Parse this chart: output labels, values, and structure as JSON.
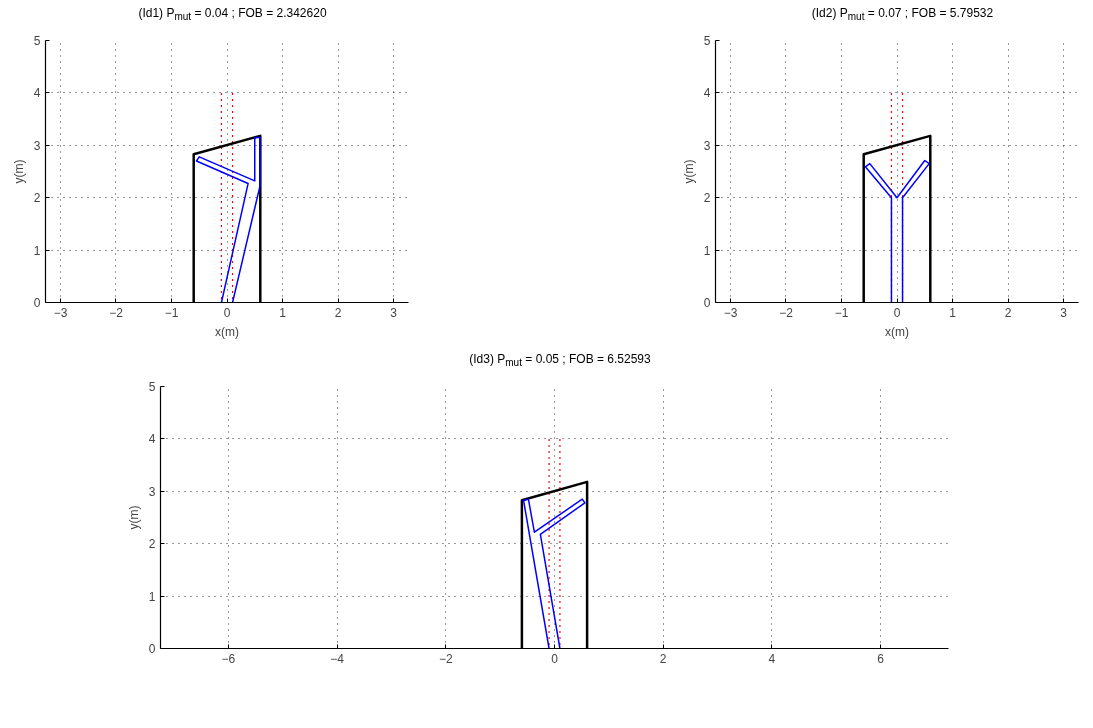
{
  "chart_data": [
    {
      "type": "line",
      "title": "(Id1) P$_{mut}$ = 0.04 ; FOB = 2.342620",
      "xlabel": "x(m)",
      "ylabel": "y(m)",
      "xlim": [
        -3.27,
        3.27
      ],
      "ylim": [
        0,
        5
      ],
      "xticks": [
        -3,
        -2,
        -1,
        0,
        1,
        2,
        3
      ],
      "yticks": [
        0,
        1,
        2,
        3,
        4,
        5
      ],
      "grid": true,
      "series": [
        {
          "color": "#ff0000",
          "line_style": "dotted",
          "x": [
            -0.1,
            -0.1
          ],
          "values": [
            0,
            4
          ]
        },
        {
          "color": "#ff0000",
          "line_style": "dotted",
          "x": [
            0.1,
            0.1
          ],
          "values": [
            0,
            4
          ]
        },
        {
          "color": "#000000",
          "line_style": "solid",
          "x": [
            -0.6,
            -0.6,
            0.6,
            0.6
          ],
          "values": [
            0,
            2.83,
            3.18,
            0
          ]
        },
        {
          "color": "#0000ff",
          "line_style": "solid",
          "x": [
            -0.1,
            0.38,
            -0.55,
            -0.5,
            0.5,
            0.5,
            0.6,
            0.6,
            0.1
          ],
          "values": [
            0,
            2.27,
            2.7,
            2.78,
            2.32,
            3.15,
            3.15,
            2.25,
            0
          ]
        }
      ]
    },
    {
      "type": "line",
      "title": "(Id2) P$_{mut}$ = 0.07 ; FOB = 5.79532",
      "xlabel": "x(m)",
      "ylabel": "y(m)",
      "xlim": [
        -3.27,
        3.27
      ],
      "ylim": [
        0,
        5
      ],
      "xticks": [
        -3,
        -2,
        -1,
        0,
        1,
        2,
        3
      ],
      "yticks": [
        0,
        1,
        2,
        3,
        4,
        5
      ],
      "grid": true,
      "series": [
        {
          "color": "#ff0000",
          "line_style": "dotted",
          "x": [
            -0.1,
            -0.1
          ],
          "values": [
            0,
            4
          ]
        },
        {
          "color": "#ff0000",
          "line_style": "dotted",
          "x": [
            0.1,
            0.1
          ],
          "values": [
            0,
            4
          ]
        },
        {
          "color": "#000000",
          "line_style": "solid",
          "x": [
            -0.6,
            -0.6,
            0.6,
            0.6
          ],
          "values": [
            0,
            2.83,
            3.18,
            0
          ]
        },
        {
          "color": "#0000ff",
          "line_style": "solid",
          "x": [
            -0.1,
            -0.1,
            -0.57,
            -0.49,
            0,
            0.5,
            0.58,
            0.1,
            0.1
          ],
          "values": [
            0,
            2.0,
            2.59,
            2.65,
            2.0,
            2.71,
            2.65,
            2.0,
            0
          ]
        }
      ]
    },
    {
      "type": "line",
      "title": "(Id3) P$_{mut}$ = 0.05 ; FOB = 6.52593",
      "ylabel": "y(m)",
      "xlim": [
        -7.25,
        7.25
      ],
      "ylim": [
        0,
        5
      ],
      "xticks": [
        -6,
        -4,
        -2,
        0,
        2,
        4,
        6
      ],
      "yticks": [
        0,
        1,
        2,
        3,
        4,
        5
      ],
      "grid": true,
      "series": [
        {
          "color": "#ff0000",
          "line_style": "dotted",
          "x": [
            -0.1,
            -0.1
          ],
          "values": [
            0,
            4
          ]
        },
        {
          "color": "#ff0000",
          "line_style": "dotted",
          "x": [
            0.1,
            0.1
          ],
          "values": [
            0,
            4
          ]
        },
        {
          "color": "#000000",
          "line_style": "solid",
          "x": [
            -0.6,
            -0.6,
            0.6,
            0.6
          ],
          "values": [
            0,
            2.83,
            3.18,
            0
          ]
        },
        {
          "color": "#0000ff",
          "line_style": "solid",
          "x": [
            -0.1,
            -0.57,
            -0.48,
            -0.37,
            0.51,
            0.56,
            -0.26,
            0.1
          ],
          "values": [
            0,
            2.83,
            2.85,
            2.22,
            2.85,
            2.78,
            2.18,
            0
          ]
        }
      ]
    }
  ]
}
